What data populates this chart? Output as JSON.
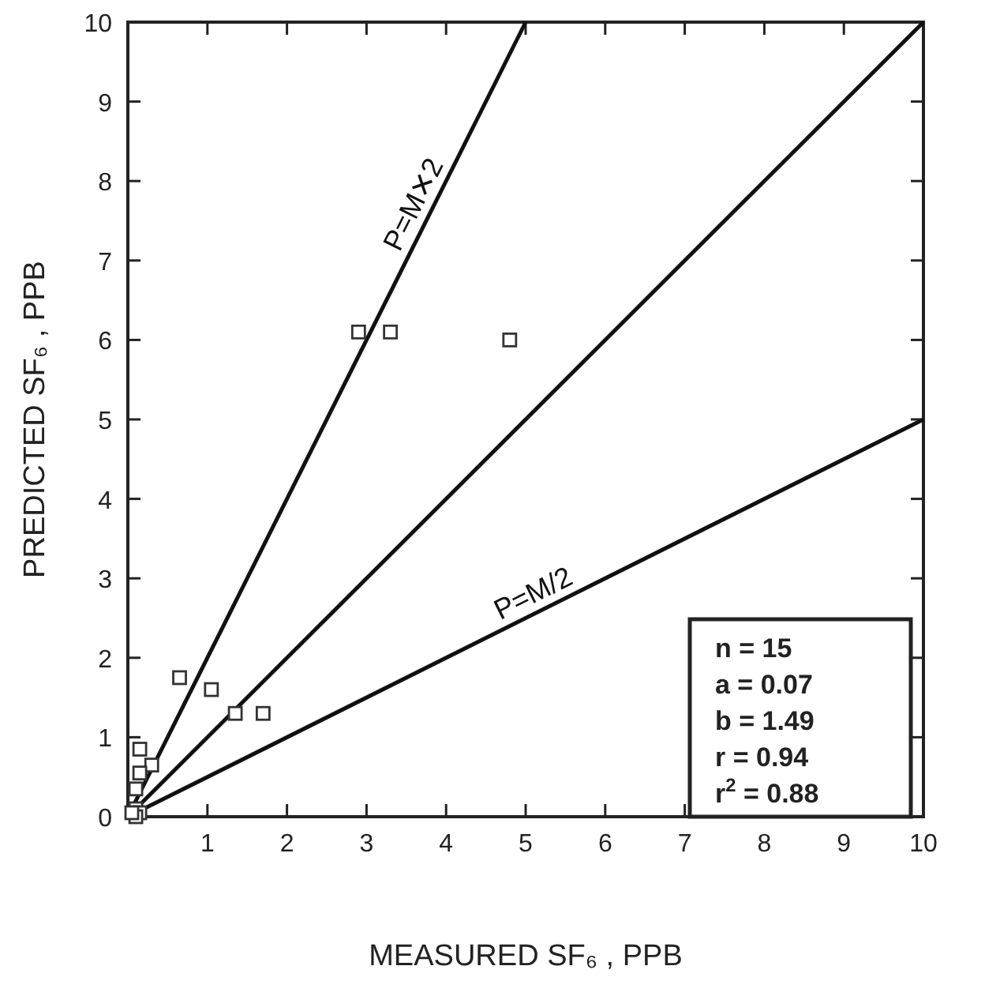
{
  "chart_data": {
    "type": "scatter",
    "xlabel": "MEASURED SF₆ , PPB",
    "ylabel": "PREDICTED SF₆ , PPB",
    "xlim": [
      0,
      10
    ],
    "ylim": [
      0,
      10
    ],
    "xticks": [
      {
        "value": 0,
        "label": null
      },
      1,
      2,
      3,
      4,
      5,
      6,
      7,
      8,
      9,
      10
    ],
    "yticks": [
      0,
      1,
      2,
      3,
      4,
      5,
      6,
      7,
      8,
      9,
      10
    ],
    "grid": false,
    "series": [
      {
        "marker": "square",
        "color": "#333333",
        "x": [
          2.9,
          3.3,
          4.8,
          0.65,
          1.05,
          1.35,
          1.7,
          0.15,
          0.3,
          0.15,
          0.1,
          0.1,
          0.15,
          0.1,
          0.05
        ],
        "values": [
          6.1,
          6.1,
          6.0,
          1.75,
          1.6,
          1.3,
          1.3,
          0.85,
          0.65,
          0.55,
          0.35,
          0.1,
          0.05,
          0.0,
          0.05
        ]
      },
      {
        "type": "line",
        "name": "P=M✕2",
        "color": "#111111",
        "line_style": "solid",
        "x": [
          0,
          5
        ],
        "values": [
          0,
          10
        ]
      },
      {
        "type": "line",
        "color": "#111111",
        "line_style": "solid",
        "x": [
          0,
          10
        ],
        "values": [
          0,
          10
        ]
      },
      {
        "type": "line",
        "name": "P=M/2",
        "color": "#111111",
        "line_style": "solid",
        "x": [
          0,
          10
        ],
        "values": [
          0,
          5
        ]
      }
    ],
    "annotations": [
      "n = 15",
      "a = 0.07",
      "b = 1.49",
      "r = 0.94",
      "r$^{2}$ = 0.88"
    ]
  }
}
